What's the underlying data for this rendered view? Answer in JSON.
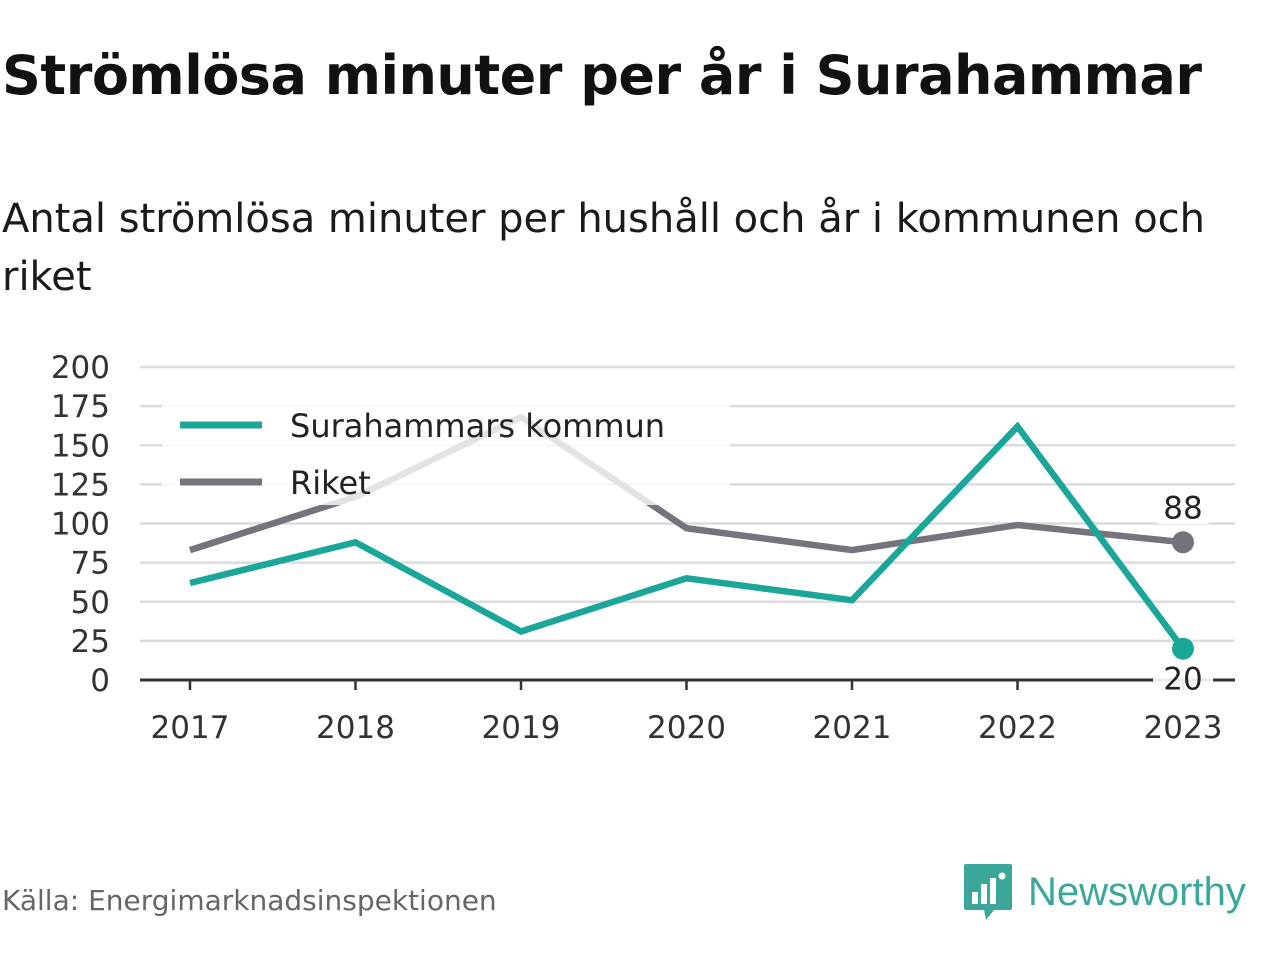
{
  "title": "Strömlösa minuter per år i Surahammar",
  "subtitle": "Antal strömlösa minuter per hushåll och år i kommunen och riket",
  "source": "Källa: Energimarknadsinspektionen",
  "brand": {
    "name": "Newsworthy",
    "icon": "newsworthy-chart-logo-icon",
    "color": "#3aa79a"
  },
  "chart_data": {
    "type": "line",
    "categories": [
      "2017",
      "2018",
      "2019",
      "2020",
      "2021",
      "2022",
      "2023"
    ],
    "ylim": [
      0,
      200
    ],
    "yticks": [
      "0",
      "25",
      "50",
      "75",
      "100",
      "125",
      "150",
      "175",
      "200"
    ],
    "grid": true,
    "legend_position": "top-left",
    "series": [
      {
        "name": "Surahammars kommun",
        "color": "#1aa699",
        "values": [
          62,
          88,
          31,
          65,
          51,
          162,
          20
        ],
        "end_label": "20"
      },
      {
        "name": "Riket",
        "color": "#75737b",
        "values": [
          83,
          117,
          168,
          97,
          83,
          99,
          88
        ],
        "end_label": "88"
      }
    ]
  }
}
